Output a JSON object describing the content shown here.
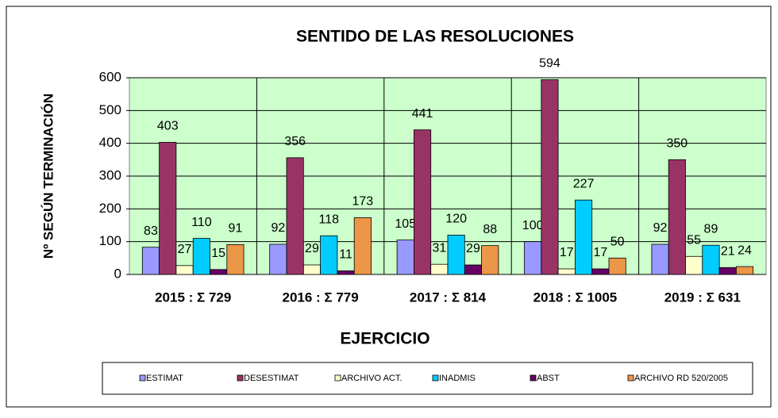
{
  "chart_data": {
    "type": "bar",
    "title": "SENTIDO DE LAS RESOLUCIONES",
    "y_label": "Nº SEGÚN TERMINACIÓN",
    "x_label": "EJERCICIO",
    "categories": [
      "2015 : Σ 729",
      "2016 : Σ 779",
      "2017 : Σ 814",
      "2018 : Σ 1005",
      "2019 : Σ 631"
    ],
    "series": [
      {
        "name": "ESTIMAT",
        "color": "#9999ff",
        "values": [
          83,
          92,
          105,
          100,
          92
        ]
      },
      {
        "name": "DESESTIMAT",
        "color": "#993366",
        "values": [
          403,
          356,
          441,
          594,
          350
        ]
      },
      {
        "name": "ARCHIVO ACT.",
        "color": "#ffffcc",
        "values": [
          27,
          29,
          31,
          17,
          55
        ]
      },
      {
        "name": "INADMIS",
        "color": "#00ccff",
        "values": [
          110,
          118,
          120,
          227,
          89
        ]
      },
      {
        "name": "ABST",
        "color": "#660066",
        "values": [
          15,
          11,
          29,
          17,
          21
        ]
      },
      {
        "name": "ARCHIVO RD 520/2005",
        "color": "#ec9648",
        "values": [
          91,
          173,
          88,
          50,
          24
        ]
      }
    ],
    "ylim": [
      0,
      600
    ],
    "yticks": [
      0,
      100,
      200,
      300,
      400,
      500,
      600
    ],
    "grid": true
  }
}
